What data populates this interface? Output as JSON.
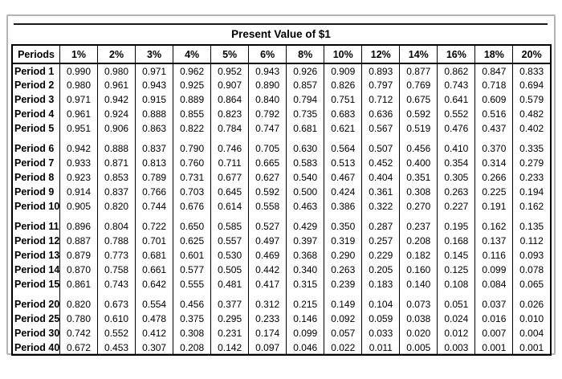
{
  "chart_data": {
    "type": "table",
    "title": "Present Value of $1",
    "columns": [
      "Periods",
      "1%",
      "2%",
      "3%",
      "4%",
      "5%",
      "6%",
      "8%",
      "10%",
      "12%",
      "14%",
      "16%",
      "18%",
      "20%"
    ],
    "row_groups": [
      [
        {
          "label": "Period 1",
          "values": [
            "0.990",
            "0.980",
            "0.971",
            "0.962",
            "0.952",
            "0.943",
            "0.926",
            "0.909",
            "0.893",
            "0.877",
            "0.862",
            "0.847",
            "0.833"
          ]
        },
        {
          "label": "Period 2",
          "values": [
            "0.980",
            "0.961",
            "0.943",
            "0.925",
            "0.907",
            "0.890",
            "0.857",
            "0.826",
            "0.797",
            "0.769",
            "0.743",
            "0.718",
            "0.694"
          ]
        },
        {
          "label": "Period 3",
          "values": [
            "0.971",
            "0.942",
            "0.915",
            "0.889",
            "0.864",
            "0.840",
            "0.794",
            "0.751",
            "0.712",
            "0.675",
            "0.641",
            "0.609",
            "0.579"
          ]
        },
        {
          "label": "Period 4",
          "values": [
            "0.961",
            "0.924",
            "0.888",
            "0.855",
            "0.823",
            "0.792",
            "0.735",
            "0.683",
            "0.636",
            "0.592",
            "0.552",
            "0.516",
            "0.482"
          ]
        },
        {
          "label": "Period 5",
          "values": [
            "0.951",
            "0.906",
            "0.863",
            "0.822",
            "0.784",
            "0.747",
            "0.681",
            "0.621",
            "0.567",
            "0.519",
            "0.476",
            "0.437",
            "0.402"
          ]
        }
      ],
      [
        {
          "label": "Period 6",
          "values": [
            "0.942",
            "0.888",
            "0.837",
            "0.790",
            "0.746",
            "0.705",
            "0.630",
            "0.564",
            "0.507",
            "0.456",
            "0.410",
            "0.370",
            "0.335"
          ]
        },
        {
          "label": "Period 7",
          "values": [
            "0.933",
            "0.871",
            "0.813",
            "0.760",
            "0.711",
            "0.665",
            "0.583",
            "0.513",
            "0.452",
            "0.400",
            "0.354",
            "0.314",
            "0.279"
          ]
        },
        {
          "label": "Period 8",
          "values": [
            "0.923",
            "0.853",
            "0.789",
            "0.731",
            "0.677",
            "0.627",
            "0.540",
            "0.467",
            "0.404",
            "0.351",
            "0.305",
            "0.266",
            "0.233"
          ]
        },
        {
          "label": "Period 9",
          "values": [
            "0.914",
            "0.837",
            "0.766",
            "0.703",
            "0.645",
            "0.592",
            "0.500",
            "0.424",
            "0.361",
            "0.308",
            "0.263",
            "0.225",
            "0.194"
          ]
        },
        {
          "label": "Period 10",
          "values": [
            "0.905",
            "0.820",
            "0.744",
            "0.676",
            "0.614",
            "0.558",
            "0.463",
            "0.386",
            "0.322",
            "0.270",
            "0.227",
            "0.191",
            "0.162"
          ]
        }
      ],
      [
        {
          "label": "Period 11",
          "values": [
            "0.896",
            "0.804",
            "0.722",
            "0.650",
            "0.585",
            "0.527",
            "0.429",
            "0.350",
            "0.287",
            "0.237",
            "0.195",
            "0.162",
            "0.135"
          ]
        },
        {
          "label": "Period 12",
          "values": [
            "0.887",
            "0.788",
            "0.701",
            "0.625",
            "0.557",
            "0.497",
            "0.397",
            "0.319",
            "0.257",
            "0.208",
            "0.168",
            "0.137",
            "0.112"
          ]
        },
        {
          "label": "Period 13",
          "values": [
            "0.879",
            "0.773",
            "0.681",
            "0.601",
            "0.530",
            "0.469",
            "0.368",
            "0.290",
            "0.229",
            "0.182",
            "0.145",
            "0.116",
            "0.093"
          ]
        },
        {
          "label": "Period 14",
          "values": [
            "0.870",
            "0.758",
            "0.661",
            "0.577",
            "0.505",
            "0.442",
            "0.340",
            "0.263",
            "0.205",
            "0.160",
            "0.125",
            "0.099",
            "0.078"
          ]
        },
        {
          "label": "Period 15",
          "values": [
            "0.861",
            "0.743",
            "0.642",
            "0.555",
            "0.481",
            "0.417",
            "0.315",
            "0.239",
            "0.183",
            "0.140",
            "0.108",
            "0.084",
            "0.065"
          ]
        }
      ],
      [
        {
          "label": "Period 20",
          "values": [
            "0.820",
            "0.673",
            "0.554",
            "0.456",
            "0.377",
            "0.312",
            "0.215",
            "0.149",
            "0.104",
            "0.073",
            "0.051",
            "0.037",
            "0.026"
          ]
        },
        {
          "label": "Period 25",
          "values": [
            "0.780",
            "0.610",
            "0.478",
            "0.375",
            "0.295",
            "0.233",
            "0.146",
            "0.092",
            "0.059",
            "0.038",
            "0.024",
            "0.016",
            "0.010"
          ]
        },
        {
          "label": "Period 30",
          "values": [
            "0.742",
            "0.552",
            "0.412",
            "0.308",
            "0.231",
            "0.174",
            "0.099",
            "0.057",
            "0.033",
            "0.020",
            "0.012",
            "0.007",
            "0.004"
          ]
        },
        {
          "label": "Period 40",
          "values": [
            "0.672",
            "0.453",
            "0.307",
            "0.208",
            "0.142",
            "0.097",
            "0.046",
            "0.022",
            "0.011",
            "0.005",
            "0.003",
            "0.001",
            "0.001"
          ]
        }
      ]
    ]
  }
}
